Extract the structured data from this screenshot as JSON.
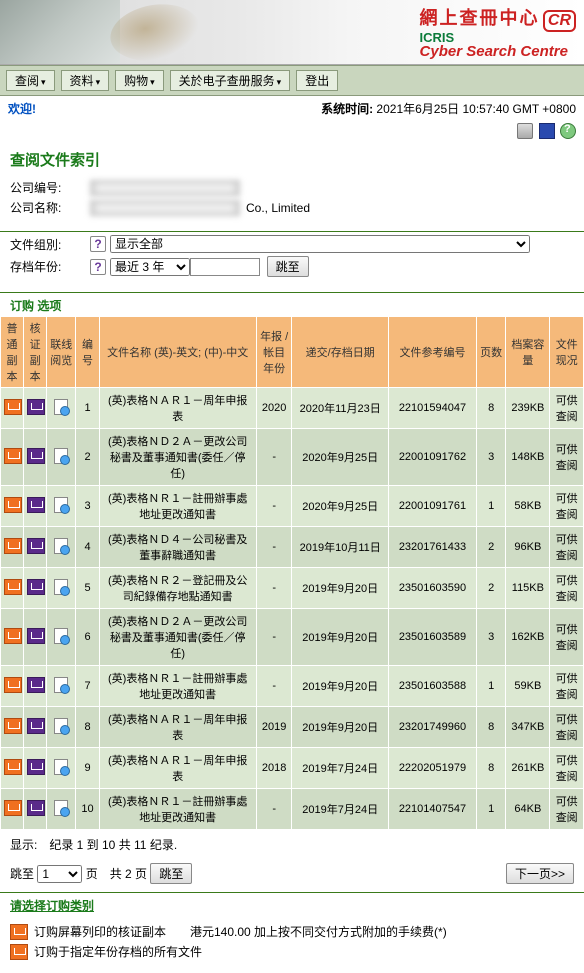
{
  "banner": {
    "title_ch": "網上查冊中心",
    "sub1": "ICRIS",
    "sub2": "Cyber Search Centre",
    "badge": "CR"
  },
  "menu": {
    "items": [
      "查阅",
      "资料",
      "购物",
      "关於电子查册服务"
    ],
    "logout": "登出"
  },
  "welcome": {
    "label": "欢迎!",
    "time_label": "系统时间:",
    "time_value": "2021年6月25日 10:57:40 GMT +0800"
  },
  "section": {
    "title": "查阅文件索引"
  },
  "company": {
    "id_label": "公司编号:",
    "name_label": "公司名称:",
    "name_suffix": "Co., Limited"
  },
  "filters": {
    "group_label": "文件组別:",
    "group_value": "显示全部",
    "year_label": "存档年份:",
    "year_value": "最近 3 年",
    "jump_btn": "跳至"
  },
  "order_label": "订购 选项",
  "columns": {
    "c1": "普通副本",
    "c2": "核证副本",
    "c3": "联线阅览",
    "c4": "编号",
    "c5": "文件名称 (英)-英文; (中)-中文",
    "c6": "年报 / 帐目年份",
    "c7": "递交/存档日期",
    "c8": "文件参考编号",
    "c9": "页数",
    "c10": "档案容量",
    "c11": "文件现况"
  },
  "rows": [
    {
      "no": "1",
      "name": "(英)表格ＮＡＲ１－周年申报表",
      "year": "2020",
      "date": "2020年11月23日",
      "ref": "22101594047",
      "pages": "8",
      "size": "239KB",
      "status": "可供查阅"
    },
    {
      "no": "2",
      "name": "(英)表格ＮＤ２Ａ－更改公司秘書及董事通知書(委任／停任)",
      "year": "-",
      "date": "2020年9月25日",
      "ref": "22001091762",
      "pages": "3",
      "size": "148KB",
      "status": "可供查阅"
    },
    {
      "no": "3",
      "name": "(英)表格ＮＲ１－註冊辦事處地址更改通知書",
      "year": "-",
      "date": "2020年9月25日",
      "ref": "22001091761",
      "pages": "1",
      "size": "58KB",
      "status": "可供查阅"
    },
    {
      "no": "4",
      "name": "(英)表格ＮＤ４－公司秘書及董事辭職通知書",
      "year": "-",
      "date": "2019年10月11日",
      "ref": "23201761433",
      "pages": "2",
      "size": "96KB",
      "status": "可供查阅"
    },
    {
      "no": "5",
      "name": "(英)表格ＮＲ２－登記冊及公司紀錄備存地點通知書",
      "year": "-",
      "date": "2019年9月20日",
      "ref": "23501603590",
      "pages": "2",
      "size": "115KB",
      "status": "可供查阅"
    },
    {
      "no": "6",
      "name": "(英)表格ＮＤ２Ａ－更改公司秘書及董事通知書(委任／停任)",
      "year": "-",
      "date": "2019年9月20日",
      "ref": "23501603589",
      "pages": "3",
      "size": "162KB",
      "status": "可供查阅"
    },
    {
      "no": "7",
      "name": "(英)表格ＮＲ１－註冊辦事處地址更改通知書",
      "year": "-",
      "date": "2019年9月20日",
      "ref": "23501603588",
      "pages": "1",
      "size": "59KB",
      "status": "可供查阅"
    },
    {
      "no": "8",
      "name": "(英)表格ＮＡＲ１－周年申报表",
      "year": "2019",
      "date": "2019年9月20日",
      "ref": "23201749960",
      "pages": "8",
      "size": "347KB",
      "status": "可供查阅"
    },
    {
      "no": "9",
      "name": "(英)表格ＮＡＲ１－周年申报表",
      "year": "2018",
      "date": "2019年7月24日",
      "ref": "22202051979",
      "pages": "8",
      "size": "261KB",
      "status": "可供查阅"
    },
    {
      "no": "10",
      "name": "(英)表格ＮＲ１－註冊辦事處地址更改通知書",
      "year": "-",
      "date": "2019年7月24日",
      "ref": "22101407547",
      "pages": "1",
      "size": "64KB",
      "status": "可供查阅"
    }
  ],
  "footer": {
    "showing": "显示:　纪录 1 到 10 共 11 纪录.",
    "jump_prefix": "跳至",
    "page_sel": "1",
    "jump_suffix": "页　共 2 页",
    "jump_btn": "跳至",
    "next_btn": "下一页>>"
  },
  "legend": {
    "title": "请选择订购类别",
    "row1": "订购屏幕列印的核证副本　　港元140.00 加上按不同交付方式附加的手续费(*)",
    "row2": "订购于指定年份存档的所有文件"
  }
}
